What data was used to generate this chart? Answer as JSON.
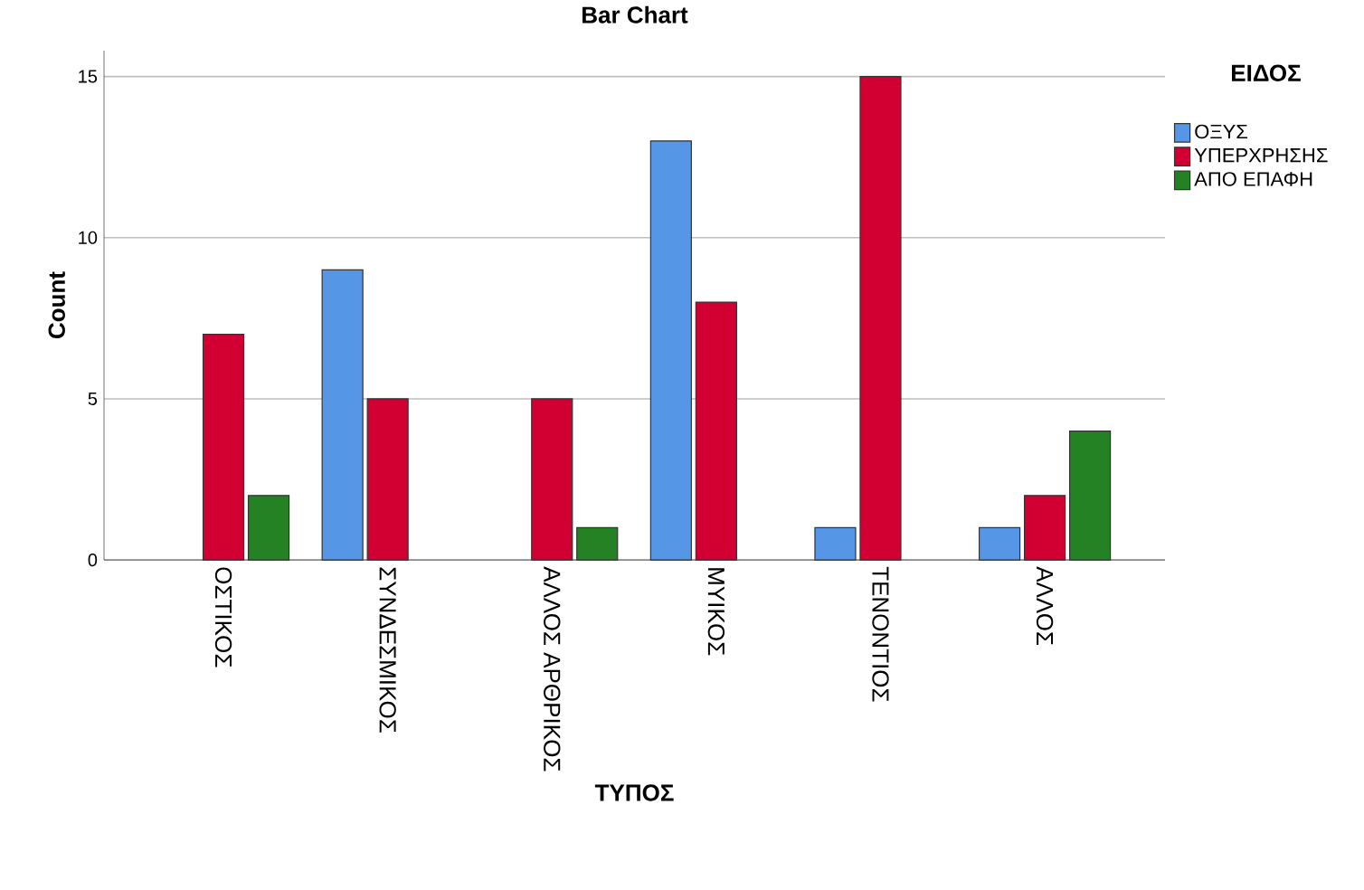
{
  "chart_data": {
    "type": "bar",
    "title": "Bar Chart",
    "xlabel": "ΤΥΠΟΣ",
    "ylabel": "Count",
    "legend_title": "ΕΙΔΟΣ",
    "categories": [
      "ΟΣΤΙΚΟΣ",
      "ΣΥΝΔΕΣΜΙΚΟΣ",
      "ΑΛΛΟΣ ΑΡΘΡΙΚΟΣ",
      "ΜΥΙΚΟΣ",
      "ΤΕΝΟΝΤΙΟΣ",
      "ΑΛΛΟΣ"
    ],
    "series": [
      {
        "name": "ΟΞΥΣ",
        "color": "#5596e6",
        "values": [
          null,
          9,
          null,
          13,
          1,
          1
        ]
      },
      {
        "name": "ΥΠΕΡΧΡΗΣΗΣ",
        "color": "#d20032",
        "values": [
          7,
          5,
          5,
          8,
          15,
          2
        ]
      },
      {
        "name": "ΑΠΟ ΕΠΑΦΗ",
        "color": "#258224",
        "values": [
          2,
          null,
          1,
          null,
          null,
          4
        ]
      }
    ],
    "ylim": [
      0,
      15.8
    ],
    "yticks": [
      0,
      5,
      10,
      15
    ],
    "grid": "y",
    "legend": "top right"
  }
}
